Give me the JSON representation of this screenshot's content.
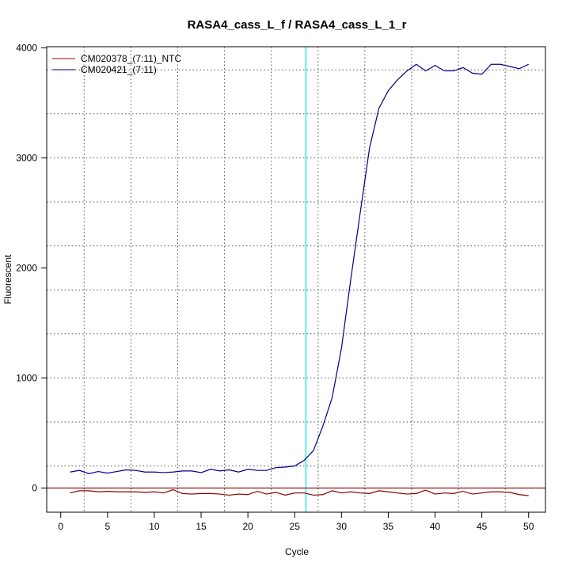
{
  "chart_data": {
    "type": "line",
    "title": "RASA4_cass_L_f / RASA4_cass_L_1_r",
    "xlabel": "Cycle",
    "ylabel": "Fluorescent",
    "xlim": [
      -1.5,
      51.8
    ],
    "ylim": [
      -220,
      4010
    ],
    "x_ticks": [
      0,
      5,
      10,
      15,
      20,
      25,
      30,
      35,
      40,
      45,
      50
    ],
    "y_ticks": [
      0,
      1000,
      2000,
      3000,
      4000
    ],
    "x_grid": [
      2.5,
      7.5,
      12.5,
      17.5,
      22.5,
      27.5,
      32.5,
      37.5,
      42.5,
      47.5
    ],
    "y_grid": [
      200,
      600,
      1000,
      1400,
      1800,
      2200,
      2600,
      3000,
      3400,
      3800
    ],
    "grid": true,
    "legend_position": "top-left",
    "colors": {
      "ntc": "#8b0000",
      "sample": "#00008b",
      "threshold_vertical": "#00e5e5",
      "threshold_horizontal": "#8b0000",
      "grid": "#555555"
    },
    "threshold_cycle": 26.2,
    "threshold_fluorescence": 0,
    "x": [
      1,
      2,
      3,
      4,
      5,
      6,
      7,
      8,
      9,
      10,
      11,
      12,
      13,
      14,
      15,
      16,
      17,
      18,
      19,
      20,
      21,
      22,
      23,
      24,
      25,
      26,
      27,
      28,
      29,
      30,
      31,
      32,
      33,
      34,
      35,
      36,
      37,
      38,
      39,
      40,
      41,
      42,
      43,
      44,
      45,
      46,
      47,
      48,
      49,
      50
    ],
    "series": [
      {
        "name": "CM020378_(7:11)_NTC",
        "color": "#8b0000",
        "values": [
          -45,
          -25,
          -25,
          -35,
          -30,
          -35,
          -35,
          -35,
          -40,
          -35,
          -45,
          -15,
          -50,
          -55,
          -50,
          -50,
          -55,
          -65,
          -55,
          -60,
          -30,
          -55,
          -40,
          -65,
          -45,
          -45,
          -65,
          -60,
          -25,
          -45,
          -35,
          -45,
          -50,
          -25,
          -35,
          -45,
          -55,
          -50,
          -20,
          -55,
          -45,
          -50,
          -30,
          -55,
          -45,
          -35,
          -35,
          -40,
          -60,
          -70
        ]
      },
      {
        "name": "CM020421_(7:11)",
        "color": "#00008b",
        "values": [
          145,
          160,
          130,
          150,
          135,
          150,
          165,
          160,
          145,
          145,
          140,
          145,
          155,
          155,
          140,
          170,
          155,
          165,
          145,
          170,
          160,
          160,
          185,
          190,
          200,
          250,
          340,
          560,
          820,
          1270,
          1900,
          2500,
          3090,
          3450,
          3610,
          3710,
          3790,
          3850,
          3790,
          3840,
          3790,
          3790,
          3820,
          3770,
          3760,
          3850,
          3850,
          3830,
          3810,
          3850
        ]
      }
    ]
  }
}
